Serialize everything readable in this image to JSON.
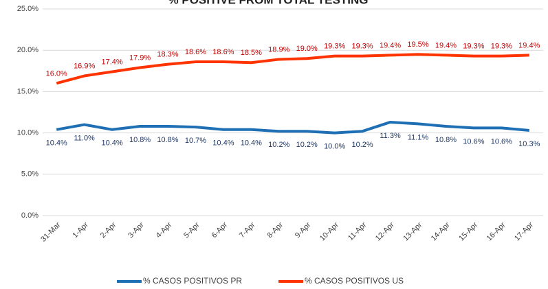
{
  "chart_data": {
    "type": "line",
    "title": "% POSITIVE FROM TOTAL TESTING",
    "categories": [
      "31-Mar",
      "1-Apr",
      "2-Apr",
      "3-Apr",
      "4-Apr",
      "5-Apr",
      "6-Apr",
      "7-Apr",
      "8-Apr",
      "9-Apr",
      "10-Apr",
      "11-Apr",
      "12-Apr",
      "13-Apr",
      "14-Apr",
      "15-Apr",
      "16-Apr",
      "17-Apr"
    ],
    "series": [
      {
        "name": "% CASOS POSITIVOS PR",
        "color": "#1f6fb5",
        "values": [
          10.4,
          11.0,
          10.4,
          10.8,
          10.8,
          10.7,
          10.4,
          10.4,
          10.2,
          10.2,
          10.0,
          10.2,
          11.3,
          11.1,
          10.8,
          10.6,
          10.6,
          10.3
        ],
        "value_labels": [
          "10.4%",
          "11.0%",
          "10.4%",
          "10.8%",
          "10.8%",
          "10.7%",
          "10.4%",
          "10.4%",
          "10.2%",
          "10.2%",
          "10.0%",
          "10.2%",
          "11.3%",
          "11.1%",
          "10.8%",
          "10.6%",
          "10.6%",
          "10.3%"
        ]
      },
      {
        "name": "% CASOS POSITIVOS US",
        "color": "#ff3300",
        "values": [
          16.0,
          16.9,
          17.4,
          17.9,
          18.3,
          18.6,
          18.6,
          18.5,
          18.9,
          19.0,
          19.3,
          19.3,
          19.4,
          19.5,
          19.4,
          19.3,
          19.3,
          19.4
        ],
        "value_labels": [
          "16.0%",
          "16.9%",
          "17.4%",
          "17.9%",
          "18.3%",
          "18.6%",
          "18.6%",
          "18.5%",
          "18.9%",
          "19.0%",
          "19.3%",
          "19.3%",
          "19.4%",
          "19.5%",
          "19.4%",
          "19.3%",
          "19.3%",
          "19.4%"
        ]
      }
    ],
    "ylim": [
      0,
      25
    ],
    "yticks": [
      {
        "value": 0,
        "label": "0.0%"
      },
      {
        "value": 5,
        "label": "5.0%"
      },
      {
        "value": 10,
        "label": "10.0%"
      },
      {
        "value": 15,
        "label": "15.0%"
      },
      {
        "value": 20,
        "label": "20.0%"
      },
      {
        "value": 25,
        "label": "25.0%"
      }
    ],
    "grid": true,
    "legend": "bottom"
  }
}
